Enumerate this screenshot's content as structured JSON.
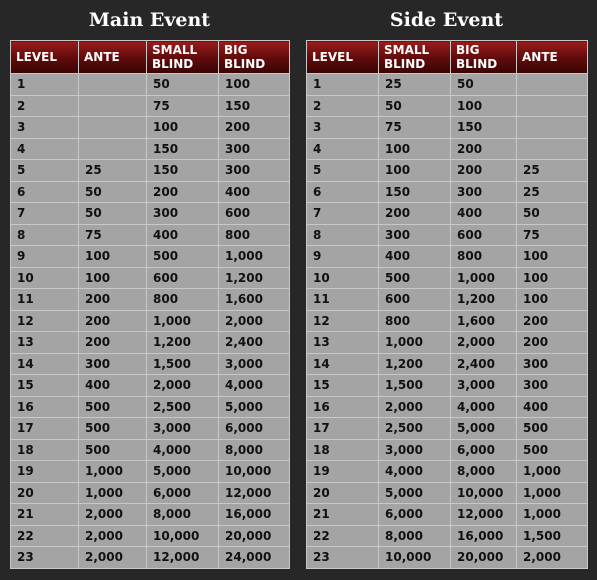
{
  "main_event": {
    "title": "Main Event",
    "headers": [
      "LEVEL",
      "ANTE",
      "SMALL BLIND",
      "BIG BLIND"
    ],
    "rows": [
      [
        "1",
        "",
        "50",
        "100"
      ],
      [
        "2",
        "",
        "75",
        "150"
      ],
      [
        "3",
        "",
        "100",
        "200"
      ],
      [
        "4",
        "",
        "150",
        "300"
      ],
      [
        "5",
        "25",
        "150",
        "300"
      ],
      [
        "6",
        "50",
        "200",
        "400"
      ],
      [
        "7",
        "50",
        "300",
        "600"
      ],
      [
        "8",
        "75",
        "400",
        "800"
      ],
      [
        "9",
        "100",
        "500",
        "1,000"
      ],
      [
        "10",
        "100",
        "600",
        "1,200"
      ],
      [
        "11",
        "200",
        "800",
        "1,600"
      ],
      [
        "12",
        "200",
        "1,000",
        "2,000"
      ],
      [
        "13",
        "200",
        "1,200",
        "2,400"
      ],
      [
        "14",
        "300",
        "1,500",
        "3,000"
      ],
      [
        "15",
        "400",
        "2,000",
        "4,000"
      ],
      [
        "16",
        "500",
        "2,500",
        "5,000"
      ],
      [
        "17",
        "500",
        "3,000",
        "6,000"
      ],
      [
        "18",
        "500",
        "4,000",
        "8,000"
      ],
      [
        "19",
        "1,000",
        "5,000",
        "10,000"
      ],
      [
        "20",
        "1,000",
        "6,000",
        "12,000"
      ],
      [
        "21",
        "2,000",
        "8,000",
        "16,000"
      ],
      [
        "22",
        "2,000",
        "10,000",
        "20,000"
      ],
      [
        "23",
        "2,000",
        "12,000",
        "24,000"
      ]
    ]
  },
  "side_event": {
    "title": "Side Event",
    "headers": [
      "LEVEL",
      "SMALL BLIND",
      "BIG BLIND",
      "ANTE"
    ],
    "rows": [
      [
        "1",
        "25",
        "50",
        ""
      ],
      [
        "2",
        "50",
        "100",
        ""
      ],
      [
        "3",
        "75",
        "150",
        ""
      ],
      [
        "4",
        "100",
        "200",
        ""
      ],
      [
        "5",
        "100",
        "200",
        "25"
      ],
      [
        "6",
        "150",
        "300",
        "25"
      ],
      [
        "7",
        "200",
        "400",
        "50"
      ],
      [
        "8",
        "300",
        "600",
        "75"
      ],
      [
        "9",
        "400",
        "800",
        "100"
      ],
      [
        "10",
        "500",
        "1,000",
        "100"
      ],
      [
        "11",
        "600",
        "1,200",
        "100"
      ],
      [
        "12",
        "800",
        "1,600",
        "200"
      ],
      [
        "13",
        "1,000",
        "2,000",
        "200"
      ],
      [
        "14",
        "1,200",
        "2,400",
        "300"
      ],
      [
        "15",
        "1,500",
        "3,000",
        "300"
      ],
      [
        "16",
        "2,000",
        "4,000",
        "400"
      ],
      [
        "17",
        "2,500",
        "5,000",
        "500"
      ],
      [
        "18",
        "3,000",
        "6,000",
        "500"
      ],
      [
        "19",
        "4,000",
        "8,000",
        "1,000"
      ],
      [
        "20",
        "5,000",
        "10,000",
        "1,000"
      ],
      [
        "21",
        "6,000",
        "12,000",
        "1,000"
      ],
      [
        "22",
        "8,000",
        "16,000",
        "1,500"
      ],
      [
        "23",
        "10,000",
        "20,000",
        "2,000"
      ]
    ]
  },
  "colors": {
    "background": "#272727",
    "header_red": "#5e0a0a",
    "cell_gray": "#a4a4a4",
    "grid_line": "#c8c8c8"
  }
}
